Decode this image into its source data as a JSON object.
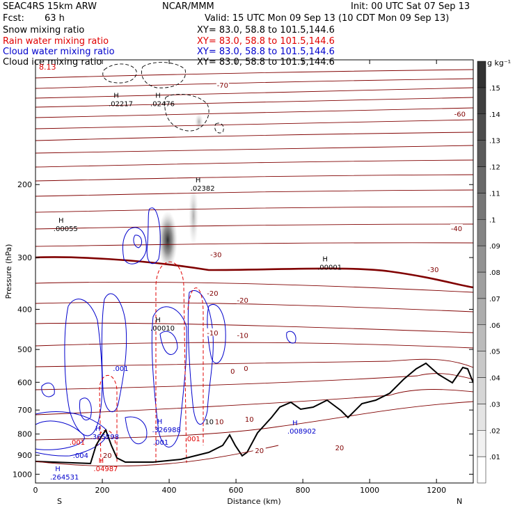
{
  "header": {
    "model": "SEAC4RS 15km ARW",
    "org": "NCAR/MMM",
    "init": "Init: 00 UTC Sat 07 Sep 13",
    "fcst_label": "Fcst:",
    "fcst_value": "63 h",
    "valid": "Valid: 15 UTC Mon 09 Sep 13 (10 CDT Mon 09 Sep 13)"
  },
  "fields": [
    {
      "name": "Snow mixing ratio",
      "xy": "XY=  83.0, 58.8 to 101.5,144.6",
      "color": "#000000"
    },
    {
      "name": "Rain water mixing ratio",
      "xy": "XY=  83.0, 58.8 to 101.5,144.6",
      "color": "#e00000"
    },
    {
      "name": "Cloud water mixing ratio",
      "xy": "XY=  83.0, 58.8 to 101.5,144.6",
      "color": "#0000cc"
    },
    {
      "name": "Cloud ice mixing ratio",
      "xy": "XY=  83.0, 58.8 to 101.5,144.6",
      "color": "#000000"
    }
  ],
  "corner_value": "8.13",
  "colorbar": {
    "unit": "g kg⁻¹",
    "levels": [
      ".01",
      ".02",
      ".03",
      ".04",
      ".05",
      ".06",
      ".07",
      ".08",
      ".09",
      ".1",
      ".11",
      ".12",
      ".13",
      ".14",
      ".15"
    ]
  },
  "chart_data": {
    "type": "cross-section",
    "xlabel": "Distance (km)",
    "ylabel": "Pressure (hPa)",
    "x_ticks": [
      0,
      200,
      400,
      600,
      800,
      1000,
      1200
    ],
    "y_ticks": [
      200,
      300,
      400,
      500,
      600,
      700,
      800,
      900,
      1000
    ],
    "xlim": [
      0,
      1310
    ],
    "ylim": [
      1050,
      100
    ],
    "y_scale": "log",
    "left_end": "S",
    "right_end": "N",
    "temperature_labels": [
      {
        "text": "-70",
        "x": 560,
        "p": 115
      },
      {
        "text": "-60",
        "x": 1270,
        "p": 135
      },
      {
        "text": "-40",
        "x": 1260,
        "p": 255
      },
      {
        "text": "-30",
        "x": 540,
        "p": 295
      },
      {
        "text": "-30",
        "x": 1190,
        "p": 320
      },
      {
        "text": "-20",
        "x": 530,
        "p": 365
      },
      {
        "text": "-20",
        "x": 620,
        "p": 380
      },
      {
        "text": "-10",
        "x": 530,
        "p": 455
      },
      {
        "text": "-10",
        "x": 620,
        "p": 462
      },
      {
        "text": "0",
        "x": 590,
        "p": 563
      },
      {
        "text": "0",
        "x": 630,
        "p": 555
      },
      {
        "text": "10",
        "x": 550,
        "p": 745
      },
      {
        "text": "10",
        "x": 640,
        "p": 735
      },
      {
        "text": "20",
        "x": 670,
        "p": 875
      },
      {
        "text": "20",
        "x": 910,
        "p": 862
      }
    ],
    "extrema_labels": [
      {
        "text": "H",
        "value": ".02217",
        "x": 225,
        "p": 125,
        "color": "#000000"
      },
      {
        "text": "H",
        "value": ".02476",
        "x": 350,
        "p": 125,
        "color": "#000000"
      },
      {
        "text": "H",
        "value": ".02382",
        "x": 470,
        "p": 200,
        "color": "#000000"
      },
      {
        "text": "H",
        "value": ".00055",
        "x": 60,
        "p": 250,
        "color": "#000000"
      },
      {
        "text": "H",
        "value": ".00001",
        "x": 850,
        "p": 310,
        "color": "#000000"
      },
      {
        "text": "H",
        "value": ".00010",
        "x": 350,
        "p": 435,
        "color": "#000000"
      },
      {
        "text": "H",
        "value": ".326988",
        "x": 355,
        "p": 765,
        "color": "#0000cc"
      },
      {
        "text": "H",
        "value": ".008902",
        "x": 760,
        "p": 770,
        "color": "#0000cc"
      },
      {
        "text": "H",
        "value": ".365298",
        "x": 170,
        "p": 795,
        "color": "#0000cc"
      },
      {
        "text": "H",
        "value": ".04987",
        "x": 180,
        "p": 950,
        "color": "#e00000"
      },
      {
        "text": "H",
        "value": ".264531",
        "x": 50,
        "p": 995,
        "color": "#0000cc"
      }
    ],
    "contour_value_labels": [
      {
        "text": ".001",
        "x": 255,
        "p": 555,
        "color": "#0000cc"
      },
      {
        "text": ".001",
        "x": 375,
        "p": 835,
        "color": "#0000cc"
      },
      {
        "text": ".001",
        "x": 470,
        "p": 820,
        "color": "#e00000"
      },
      {
        "text": ".001",
        "x": 125,
        "p": 835,
        "color": "#e00000"
      },
      {
        "text": ".004",
        "x": 135,
        "p": 900,
        "color": "#0000cc"
      },
      {
        "text": "10",
        "x": 520,
        "p": 745,
        "color": "#000000"
      },
      {
        "text": "20",
        "x": 215,
        "p": 900,
        "color": "#800000"
      }
    ]
  }
}
